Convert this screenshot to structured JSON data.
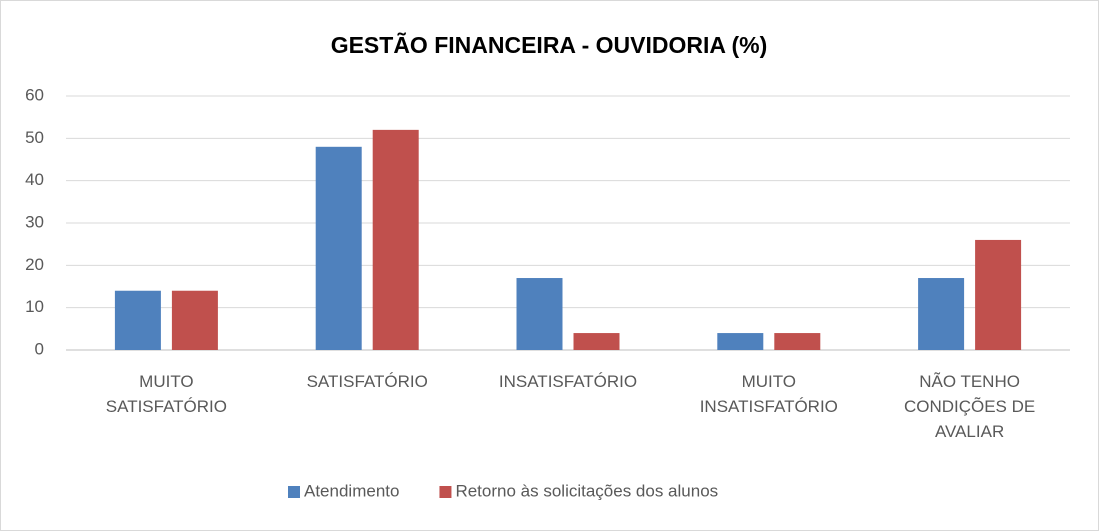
{
  "chart_data": {
    "type": "bar",
    "title": "GESTÃO FINANCEIRA - OUVIDORIA (%)",
    "categories": [
      "MUITO SATISFATÓRIO",
      "SATISFATÓRIO",
      "INSATISFATÓRIO",
      "MUITO INSATISFATÓRIO",
      "NÃO TENHO CONDIÇÕES DE AVALIAR"
    ],
    "series": [
      {
        "name": "Atendimento",
        "color": "#4f81bd",
        "values": [
          14,
          48,
          17,
          4,
          17
        ]
      },
      {
        "name": "Retorno às solicitações dos alunos",
        "color": "#c0504d",
        "values": [
          14,
          52,
          4,
          4,
          26
        ]
      }
    ],
    "ylim": [
      0,
      60
    ],
    "yticks": [
      0,
      10,
      20,
      30,
      40,
      50,
      60
    ],
    "grid": true,
    "legend": "bottom"
  }
}
